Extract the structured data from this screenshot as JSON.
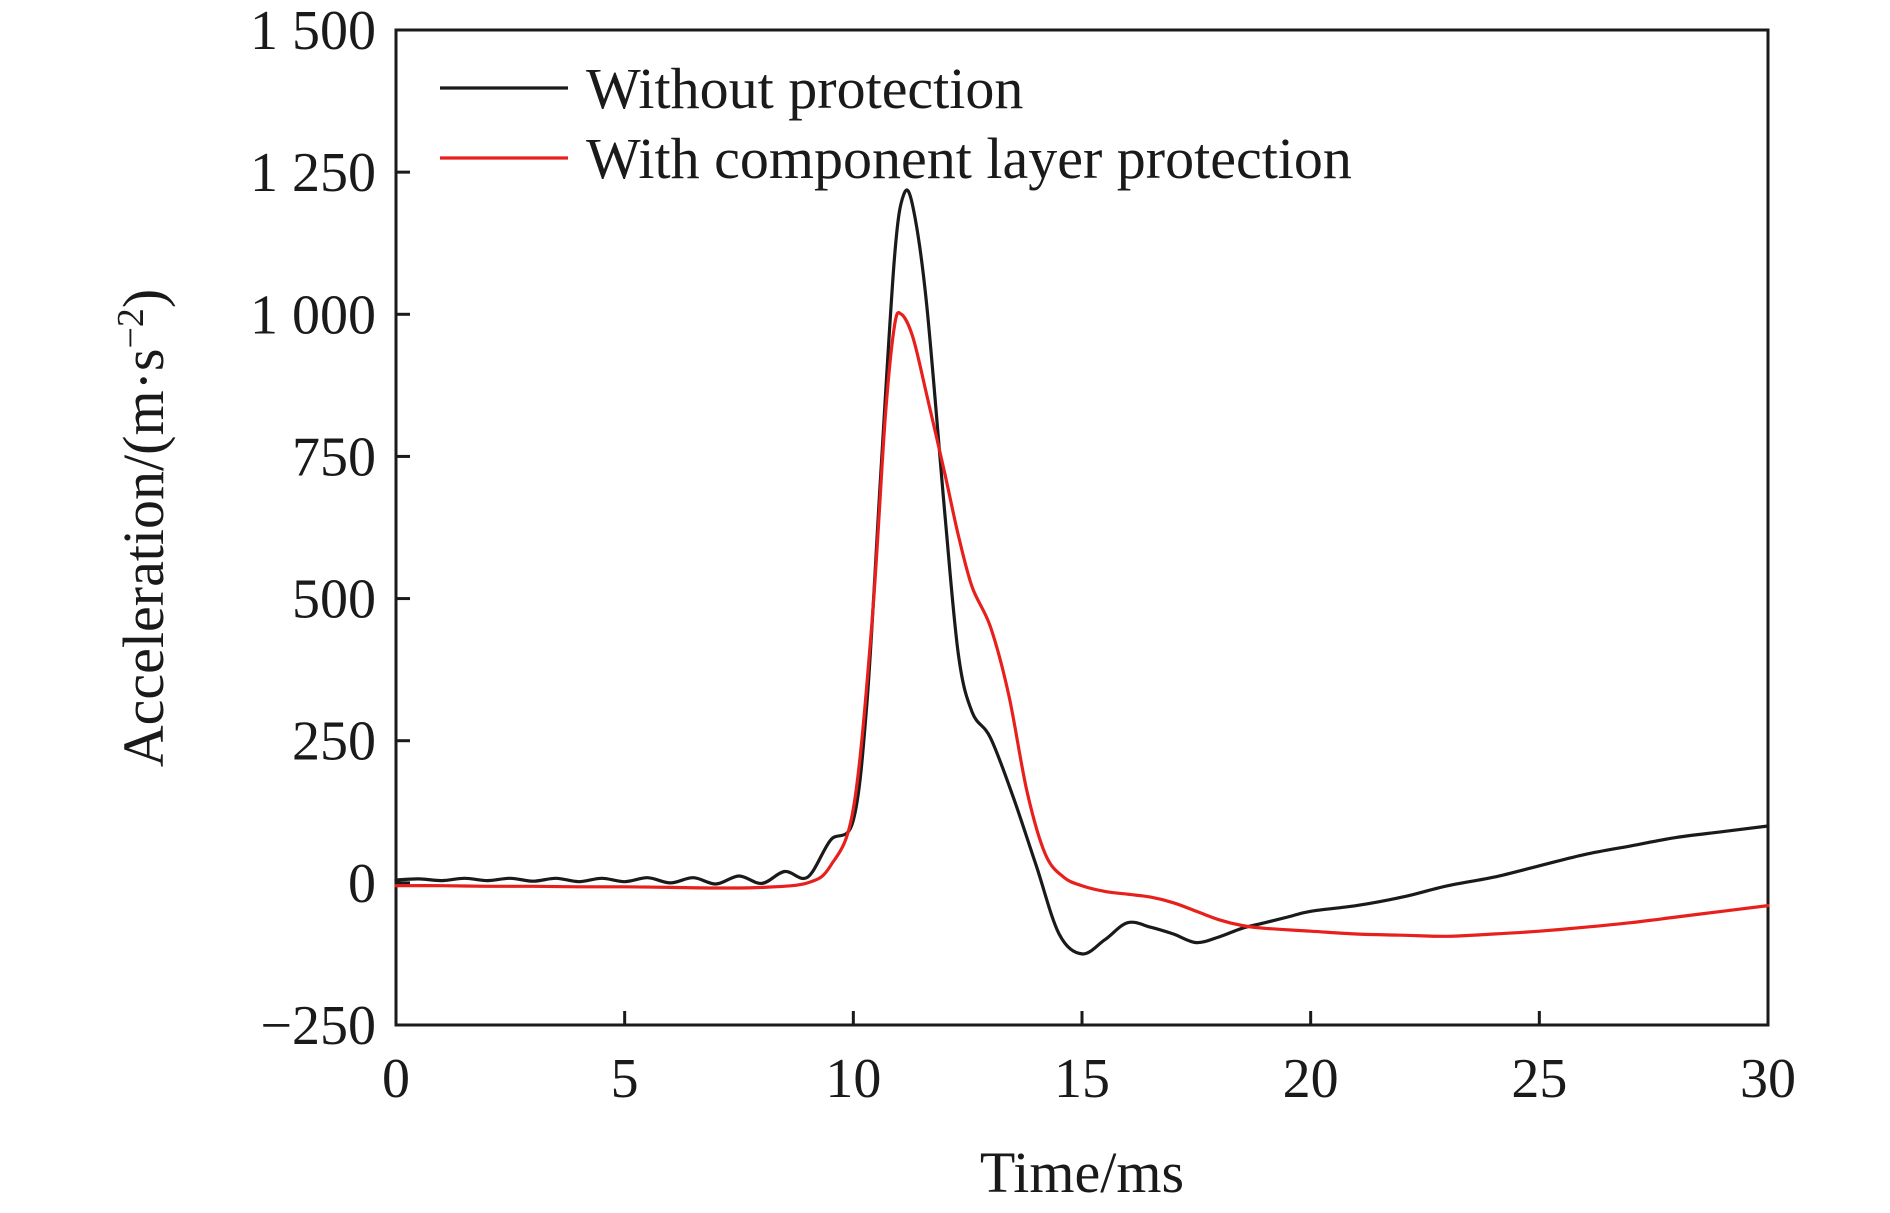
{
  "chart_data": {
    "type": "line",
    "title": "",
    "xlabel": "Time/ms",
    "ylabel_main": "Acceleration/(m·s",
    "ylabel_sup": "−2",
    "ylabel_close": ")",
    "xlim": [
      0,
      30
    ],
    "ylim": [
      -250,
      1500
    ],
    "xticks": [
      0,
      5,
      10,
      15,
      20,
      25,
      30
    ],
    "xtick_labels": [
      "0",
      "5",
      "10",
      "15",
      "20",
      "25",
      "30"
    ],
    "yticks": [
      -250,
      0,
      250,
      500,
      750,
      1000,
      1250,
      1500
    ],
    "ytick_labels": [
      "−250",
      "0",
      "250",
      "500",
      "750",
      "1 000",
      "1 250",
      "1 500"
    ],
    "grid": false,
    "legend_position": "top-left",
    "series": [
      {
        "name": "Without protection",
        "color": "#1a1a1a",
        "points": [
          [
            0,
            5
          ],
          [
            0.5,
            7
          ],
          [
            1,
            4
          ],
          [
            1.5,
            8
          ],
          [
            2,
            4
          ],
          [
            2.5,
            8
          ],
          [
            3,
            3
          ],
          [
            3.5,
            8
          ],
          [
            4,
            2
          ],
          [
            4.5,
            8
          ],
          [
            5,
            2
          ],
          [
            5.5,
            9
          ],
          [
            6,
            0
          ],
          [
            6.5,
            9
          ],
          [
            7,
            -2
          ],
          [
            7.5,
            12
          ],
          [
            8,
            -1
          ],
          [
            8.5,
            20
          ],
          [
            9,
            10
          ],
          [
            9.5,
            75
          ],
          [
            10,
            110
          ],
          [
            10.3,
            320
          ],
          [
            10.6,
            720
          ],
          [
            10.9,
            1100
          ],
          [
            11.1,
            1210
          ],
          [
            11.3,
            1190
          ],
          [
            11.6,
            1020
          ],
          [
            12,
            650
          ],
          [
            12.3,
            400
          ],
          [
            12.6,
            300
          ],
          [
            13,
            255
          ],
          [
            13.5,
            150
          ],
          [
            14,
            30
          ],
          [
            14.5,
            -90
          ],
          [
            15,
            -125
          ],
          [
            15.5,
            -100
          ],
          [
            16,
            -70
          ],
          [
            16.5,
            -78
          ],
          [
            17,
            -90
          ],
          [
            17.5,
            -105
          ],
          [
            18,
            -95
          ],
          [
            18.5,
            -80
          ],
          [
            19,
            -70
          ],
          [
            19.5,
            -60
          ],
          [
            20,
            -50
          ],
          [
            21,
            -40
          ],
          [
            22,
            -25
          ],
          [
            23,
            -5
          ],
          [
            24,
            10
          ],
          [
            25,
            30
          ],
          [
            26,
            50
          ],
          [
            27,
            65
          ],
          [
            28,
            80
          ],
          [
            29,
            90
          ],
          [
            30,
            100
          ]
        ]
      },
      {
        "name": "With component layer protection",
        "color": "#e8201c",
        "points": [
          [
            0,
            -5
          ],
          [
            1,
            -5
          ],
          [
            2,
            -6
          ],
          [
            3,
            -6
          ],
          [
            4,
            -7
          ],
          [
            5,
            -7
          ],
          [
            6,
            -8
          ],
          [
            7,
            -9
          ],
          [
            8,
            -8
          ],
          [
            9,
            0
          ],
          [
            9.5,
            30
          ],
          [
            10,
            130
          ],
          [
            10.4,
            450
          ],
          [
            10.7,
            820
          ],
          [
            10.9,
            980
          ],
          [
            11.05,
            1000
          ],
          [
            11.3,
            960
          ],
          [
            11.6,
            860
          ],
          [
            12,
            720
          ],
          [
            12.3,
            610
          ],
          [
            12.6,
            520
          ],
          [
            13,
            450
          ],
          [
            13.4,
            330
          ],
          [
            13.8,
            160
          ],
          [
            14.2,
            50
          ],
          [
            14.6,
            10
          ],
          [
            15,
            -5
          ],
          [
            15.5,
            -15
          ],
          [
            16,
            -20
          ],
          [
            16.5,
            -25
          ],
          [
            17,
            -35
          ],
          [
            17.5,
            -50
          ],
          [
            18,
            -65
          ],
          [
            18.5,
            -75
          ],
          [
            19,
            -80
          ],
          [
            20,
            -85
          ],
          [
            21,
            -90
          ],
          [
            22,
            -92
          ],
          [
            23,
            -94
          ],
          [
            24,
            -90
          ],
          [
            25,
            -85
          ],
          [
            26,
            -78
          ],
          [
            27,
            -70
          ],
          [
            28,
            -60
          ],
          [
            29,
            -50
          ],
          [
            30,
            -40
          ]
        ]
      }
    ]
  }
}
